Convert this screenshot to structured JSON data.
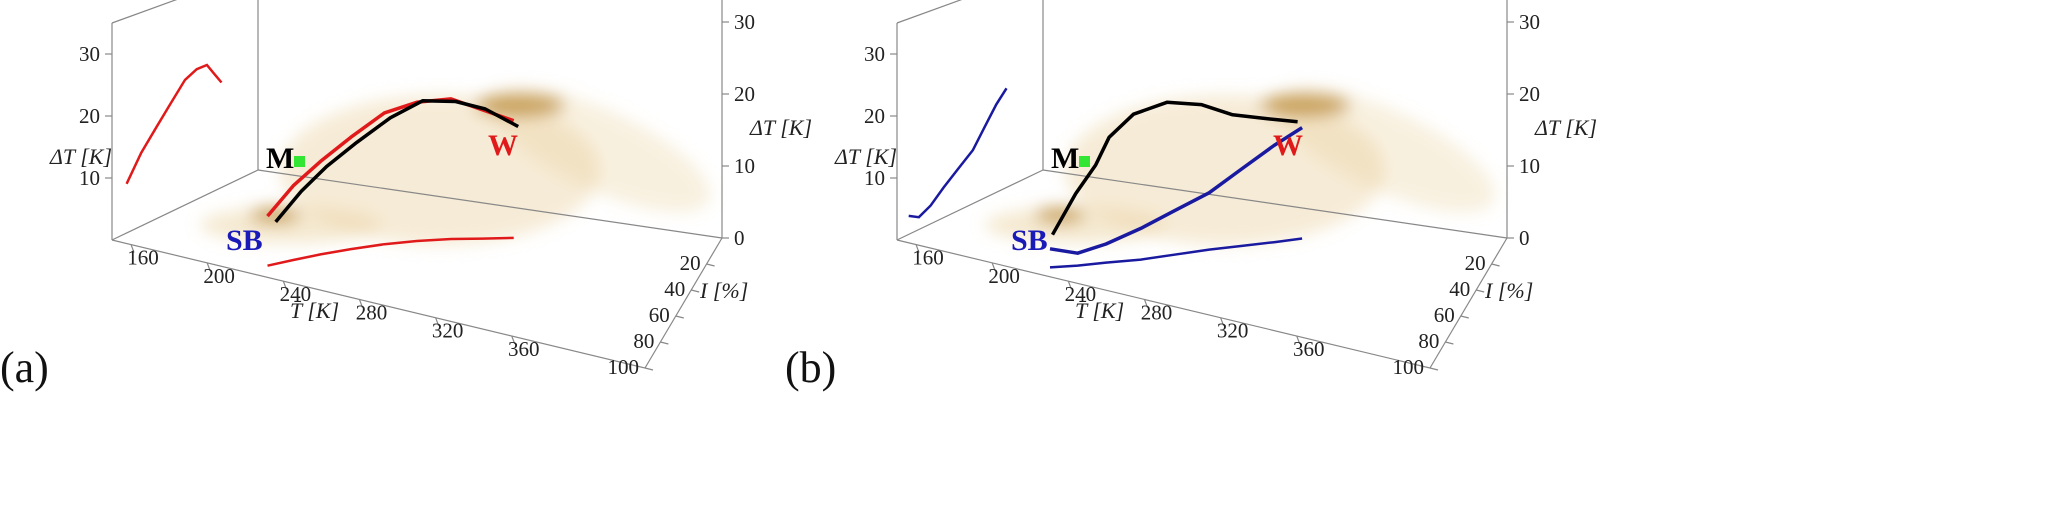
{
  "chart_data": [
    {
      "type": "line3d",
      "panel_label": "(a)",
      "xlabel": "T̄ [K]",
      "ylabel": "I [%]",
      "zlabel": "ΔT [K]",
      "xlim": [
        150,
        430
      ],
      "ylim": [
        0,
        100
      ],
      "zlim": [
        0,
        35
      ],
      "xticks": [
        160,
        200,
        240,
        280,
        320,
        360
      ],
      "yticks": [
        20,
        40,
        60,
        80,
        100
      ],
      "zticks": [
        0,
        10,
        20,
        30
      ],
      "zticks_left": [
        10,
        20,
        30
      ],
      "annotations": [
        {
          "text": "M",
          "color": "#000000"
        },
        {
          "text": "SB",
          "color": "#1a1ab8"
        },
        {
          "text": "W",
          "color": "#e01a1a"
        }
      ],
      "series": [
        {
          "color": "#e01a1a",
          "walls": true,
          "x": [
            225,
            232,
            240,
            250,
            262,
            275,
            290,
            305,
            320
          ],
          "y": [
            90,
            80,
            70,
            60,
            50,
            42,
            35,
            30,
            25
          ],
          "z": [
            8,
            12,
            15,
            18,
            21,
            22,
            22,
            20,
            18
          ]
        },
        {
          "color": "#000000",
          "walls": false,
          "x": [
            228,
            235,
            242,
            252,
            264,
            277,
            292,
            306,
            322
          ],
          "y": [
            88,
            78,
            68,
            58,
            48,
            40,
            34,
            29,
            24
          ],
          "z": [
            7,
            11,
            14,
            17,
            20,
            22,
            21.5,
            20,
            17
          ]
        }
      ]
    },
    {
      "type": "line3d",
      "panel_label": "(b)",
      "xlabel": "T̄ [K]",
      "ylabel": "I [%]",
      "zlabel": "ΔT [K]",
      "xlim": [
        150,
        430
      ],
      "ylim": [
        0,
        100
      ],
      "zlim": [
        0,
        35
      ],
      "xticks": [
        160,
        200,
        240,
        280,
        320,
        360
      ],
      "yticks": [
        20,
        40,
        60,
        80,
        100
      ],
      "zticks": [
        0,
        10,
        20,
        30
      ],
      "zticks_left": [
        10,
        20,
        30
      ],
      "annotations": [
        {
          "text": "M",
          "color": "#000000"
        },
        {
          "text": "SB",
          "color": "#1a1ab8"
        },
        {
          "text": "W",
          "color": "#e01a1a"
        }
      ],
      "series": [
        {
          "color": "#1a1aa0",
          "walls": true,
          "x": [
            225,
            235,
            245,
            258,
            270,
            283,
            296,
            310,
            322
          ],
          "y": [
            92,
            85,
            77,
            68,
            58,
            48,
            40,
            32,
            25
          ],
          "z": [
            3,
            2,
            3,
            5,
            7,
            9,
            12,
            15,
            17
          ]
        },
        {
          "color": "#000000",
          "walls": false,
          "x": [
            225,
            232,
            238,
            242,
            250,
            262,
            276,
            290,
            305,
            320
          ],
          "y": [
            90,
            82,
            75,
            70,
            62,
            52,
            44,
            38,
            32,
            26
          ],
          "z": [
            5,
            11,
            15,
            19,
            22,
            23,
            22,
            20,
            19,
            18
          ]
        }
      ]
    }
  ]
}
